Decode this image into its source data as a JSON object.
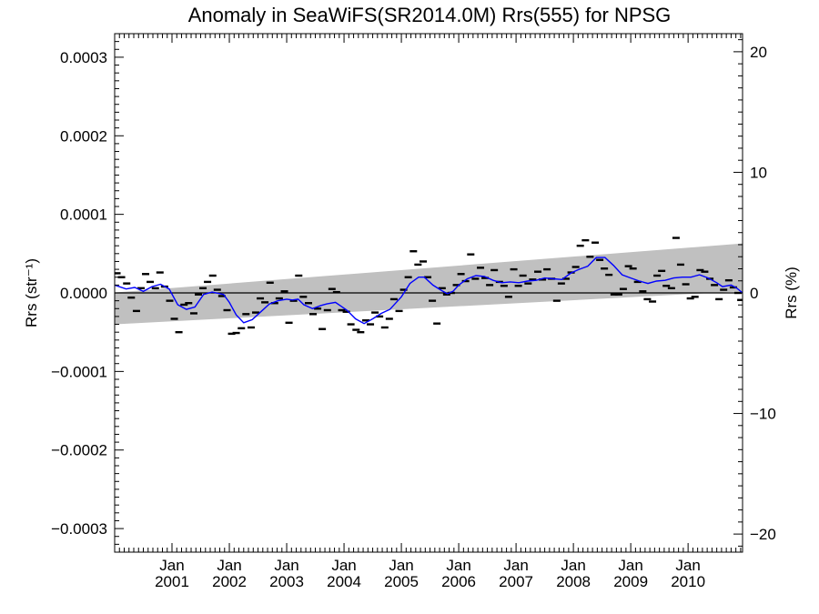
{
  "chart_data": {
    "type": "scatter",
    "title": "Anomaly in SeaWiFS(SR2014.0M) Rrs(555) for NPSG",
    "ylabel_left": "Rrs (str⁻¹)",
    "ylabel_right": "Rrs (%)",
    "xlabel": "",
    "xlim": [
      2000.0,
      2010.95
    ],
    "ylim": [
      -0.00033,
      0.00033
    ],
    "ylim_right": [
      -21.5,
      21.5
    ],
    "grid": false,
    "legend": "none",
    "x_ticks": [
      {
        "month": "Jan",
        "year": "2001",
        "value": 2001.0
      },
      {
        "month": "Jan",
        "year": "2002",
        "value": 2002.0
      },
      {
        "month": "Jan",
        "year": "2003",
        "value": 2003.0
      },
      {
        "month": "Jan",
        "year": "2004",
        "value": 2004.0
      },
      {
        "month": "Jan",
        "year": "2005",
        "value": 2005.0
      },
      {
        "month": "Jan",
        "year": "2006",
        "value": 2006.0
      },
      {
        "month": "Jan",
        "year": "2007",
        "value": 2007.0
      },
      {
        "month": "Jan",
        "year": "2008",
        "value": 2008.0
      },
      {
        "month": "Jan",
        "year": "2009",
        "value": 2009.0
      },
      {
        "month": "Jan",
        "year": "2010",
        "value": 2010.0
      }
    ],
    "y_ticks_left": [
      {
        "label": "0.0003",
        "value": 0.0003
      },
      {
        "label": "0.0002",
        "value": 0.0002
      },
      {
        "label": "0.0001",
        "value": 0.0001
      },
      {
        "label": "0.0000",
        "value": 0.0
      },
      {
        "label": "−0.0001",
        "value": -0.0001
      },
      {
        "label": "−0.0002",
        "value": -0.0002
      },
      {
        "label": "−0.0003",
        "value": -0.0003
      }
    ],
    "y_ticks_right": [
      {
        "label": "20",
        "value": 20
      },
      {
        "label": "10",
        "value": 10
      },
      {
        "label": "0",
        "value": 0
      },
      {
        "label": "−10",
        "value": -10
      },
      {
        "label": "−20",
        "value": -20
      }
    ],
    "zero_line": 0.0,
    "trend_band": {
      "x": [
        2000.0,
        2010.95
      ],
      "upper": [
        5e-07,
        6.3e-05
      ],
      "lower": [
        -4e-05,
        2e-06
      ]
    },
    "scatter_points": [
      [
        2000.04,
        2.5e-05
      ],
      [
        2000.12,
        2e-05
      ],
      [
        2000.21,
        1.2e-05
      ],
      [
        2000.29,
        -6e-06
      ],
      [
        2000.38,
        -2.3e-05
      ],
      [
        2000.46,
        6e-06
      ],
      [
        2000.54,
        2.4e-05
      ],
      [
        2000.62,
        1.4e-05
      ],
      [
        2000.71,
        6e-06
      ],
      [
        2000.79,
        2.6e-05
      ],
      [
        2000.87,
        8e-06
      ],
      [
        2000.96,
        -1e-05
      ],
      [
        2001.04,
        -3.3e-05
      ],
      [
        2001.12,
        -5e-05
      ],
      [
        2001.21,
        -1.5e-05
      ],
      [
        2001.29,
        -1.3e-05
      ],
      [
        2001.38,
        -2.6e-05
      ],
      [
        2001.46,
        -2e-06
      ],
      [
        2001.54,
        6e-06
      ],
      [
        2001.62,
        1.4e-05
      ],
      [
        2001.71,
        2.2e-05
      ],
      [
        2001.79,
        4e-06
      ],
      [
        2001.87,
        -4e-06
      ],
      [
        2001.96,
        -2.2e-05
      ],
      [
        2002.04,
        -5.2e-05
      ],
      [
        2002.12,
        -5.1e-05
      ],
      [
        2002.21,
        -4.5e-05
      ],
      [
        2002.29,
        -2.7e-05
      ],
      [
        2002.38,
        -4.4e-05
      ],
      [
        2002.46,
        -2.5e-05
      ],
      [
        2002.54,
        -7e-06
      ],
      [
        2002.62,
        -1.2e-05
      ],
      [
        2002.71,
        1.3e-05
      ],
      [
        2002.79,
        -1.3e-05
      ],
      [
        2002.87,
        -7e-06
      ],
      [
        2002.96,
        2e-06
      ],
      [
        2003.04,
        -3.8e-05
      ],
      [
        2003.12,
        -1e-05
      ],
      [
        2003.21,
        2.2e-05
      ],
      [
        2003.29,
        -5e-06
      ],
      [
        2003.38,
        -1.3e-05
      ],
      [
        2003.46,
        -2.7e-05
      ],
      [
        2003.54,
        -2e-05
      ],
      [
        2003.62,
        -4.6e-05
      ],
      [
        2003.71,
        -2.2e-05
      ],
      [
        2003.79,
        5e-06
      ],
      [
        2003.87,
        1e-06
      ],
      [
        2003.96,
        -2.2e-05
      ],
      [
        2004.04,
        -2.4e-05
      ],
      [
        2004.12,
        -4e-05
      ],
      [
        2004.21,
        -4.7e-05
      ],
      [
        2004.29,
        -5e-05
      ],
      [
        2004.38,
        -3.5e-05
      ],
      [
        2004.46,
        -4e-05
      ],
      [
        2004.54,
        -2.5e-05
      ],
      [
        2004.62,
        -3e-05
      ],
      [
        2004.71,
        -4.4e-05
      ],
      [
        2004.79,
        -3.3e-05
      ],
      [
        2004.87,
        -8e-06
      ],
      [
        2004.96,
        -2.3e-05
      ],
      [
        2005.04,
        4e-06
      ],
      [
        2005.12,
        2e-05
      ],
      [
        2005.21,
        5.3e-05
      ],
      [
        2005.29,
        3.6e-05
      ],
      [
        2005.38,
        4e-05
      ],
      [
        2005.46,
        2e-05
      ],
      [
        2005.54,
        -1e-05
      ],
      [
        2005.62,
        -3.9e-05
      ],
      [
        2005.71,
        6e-06
      ],
      [
        2005.79,
        -2e-06
      ],
      [
        2005.87,
        0.0
      ],
      [
        2005.96,
        1e-05
      ],
      [
        2006.04,
        2.4e-05
      ],
      [
        2006.12,
        1.5e-05
      ],
      [
        2006.21,
        4.9e-05
      ],
      [
        2006.29,
        1.8e-05
      ],
      [
        2006.38,
        3.2e-05
      ],
      [
        2006.46,
        1.9e-05
      ],
      [
        2006.54,
        1e-05
      ],
      [
        2006.62,
        2.9e-05
      ],
      [
        2006.71,
        1.4e-05
      ],
      [
        2006.79,
        9e-06
      ],
      [
        2006.87,
        -5e-06
      ],
      [
        2006.96,
        3e-05
      ],
      [
        2007.04,
        9e-06
      ],
      [
        2007.12,
        2.2e-05
      ],
      [
        2007.21,
        1.2e-05
      ],
      [
        2007.29,
        1.7e-05
      ],
      [
        2007.38,
        2.7e-05
      ],
      [
        2007.46,
        1.7e-05
      ],
      [
        2007.54,
        3e-05
      ],
      [
        2007.62,
        1.8e-05
      ],
      [
        2007.71,
        -1e-05
      ],
      [
        2007.79,
        1.2e-05
      ],
      [
        2007.87,
        1.8e-05
      ],
      [
        2007.96,
        2.6e-05
      ],
      [
        2008.04,
        3.3e-05
      ],
      [
        2008.12,
        6e-05
      ],
      [
        2008.21,
        6.7e-05
      ],
      [
        2008.29,
        4.6e-05
      ],
      [
        2008.38,
        6.4e-05
      ],
      [
        2008.46,
        4.2e-05
      ],
      [
        2008.54,
        3.1e-05
      ],
      [
        2008.62,
        2.3e-05
      ],
      [
        2008.71,
        -2e-06
      ],
      [
        2008.79,
        -2e-06
      ],
      [
        2008.87,
        5e-06
      ],
      [
        2008.96,
        3.4e-05
      ],
      [
        2009.04,
        3.1e-05
      ],
      [
        2009.12,
        1.4e-05
      ],
      [
        2009.21,
        2e-06
      ],
      [
        2009.29,
        -8e-06
      ],
      [
        2009.38,
        -1.1e-05
      ],
      [
        2009.46,
        2.2e-05
      ],
      [
        2009.54,
        2.8e-05
      ],
      [
        2009.62,
        9e-06
      ],
      [
        2009.71,
        6e-06
      ],
      [
        2009.79,
        7e-05
      ],
      [
        2009.87,
        3.6e-05
      ],
      [
        2009.96,
        1.1e-05
      ],
      [
        2010.04,
        -7e-06
      ],
      [
        2010.12,
        -5e-06
      ],
      [
        2010.21,
        2.9e-05
      ],
      [
        2010.29,
        2.7e-05
      ],
      [
        2010.38,
        1.8e-05
      ],
      [
        2010.46,
        1e-05
      ],
      [
        2010.54,
        -8e-06
      ],
      [
        2010.62,
        4e-06
      ],
      [
        2010.71,
        1.6e-05
      ],
      [
        2010.79,
        7e-06
      ],
      [
        2010.87,
        0.0
      ],
      [
        2010.92,
        -9e-06
      ]
    ],
    "smoothed_line": [
      [
        2000.0,
        1e-05
      ],
      [
        2000.2,
        5e-06
      ],
      [
        2000.35,
        7e-06
      ],
      [
        2000.5,
        2e-06
      ],
      [
        2000.65,
        8e-06
      ],
      [
        2000.8,
        1.1e-05
      ],
      [
        2000.95,
        5e-06
      ],
      [
        2001.1,
        -1.5e-05
      ],
      [
        2001.25,
        -2.1e-05
      ],
      [
        2001.4,
        -1.8e-05
      ],
      [
        2001.55,
        -2e-06
      ],
      [
        2001.7,
        1e-06
      ],
      [
        2001.9,
        -2e-06
      ],
      [
        2002.0,
        -1.2e-05
      ],
      [
        2002.12,
        -2.8e-05
      ],
      [
        2002.25,
        -3.8e-05
      ],
      [
        2002.4,
        -3.4e-05
      ],
      [
        2002.55,
        -2.4e-05
      ],
      [
        2002.7,
        -1.4e-05
      ],
      [
        2002.85,
        -1e-05
      ],
      [
        2003.0,
        -8e-06
      ],
      [
        2003.1,
        -9e-06
      ],
      [
        2003.2,
        -8e-06
      ],
      [
        2003.3,
        -1.5e-05
      ],
      [
        2003.45,
        -2e-05
      ],
      [
        2003.6,
        -1.6e-05
      ],
      [
        2003.7,
        -1.4e-05
      ],
      [
        2003.85,
        -1.2e-05
      ],
      [
        2003.95,
        -1.7e-05
      ],
      [
        2004.05,
        -2.2e-05
      ],
      [
        2004.2,
        -3.3e-05
      ],
      [
        2004.35,
        -3.9e-05
      ],
      [
        2004.5,
        -3.3e-05
      ],
      [
        2004.65,
        -2.6e-05
      ],
      [
        2004.8,
        -2.1e-05
      ],
      [
        2004.9,
        -1.3e-05
      ],
      [
        2005.0,
        -5e-06
      ],
      [
        2005.15,
        1.2e-05
      ],
      [
        2005.3,
        2e-05
      ],
      [
        2005.4,
        2e-05
      ],
      [
        2005.55,
        1e-05
      ],
      [
        2005.7,
        3e-06
      ],
      [
        2005.8,
        -1e-06
      ],
      [
        2005.9,
        2e-06
      ],
      [
        2006.0,
        1e-05
      ],
      [
        2006.15,
        1.8e-05
      ],
      [
        2006.3,
        2.2e-05
      ],
      [
        2006.45,
        2.1e-05
      ],
      [
        2006.6,
        1.6e-05
      ],
      [
        2006.75,
        1.3e-05
      ],
      [
        2006.9,
        1.4e-05
      ],
      [
        2007.05,
        1.3e-05
      ],
      [
        2007.2,
        1.5e-05
      ],
      [
        2007.35,
        1.6e-05
      ],
      [
        2007.5,
        1.9e-05
      ],
      [
        2007.65,
        1.8e-05
      ],
      [
        2007.8,
        1.7e-05
      ],
      [
        2007.95,
        2.5e-05
      ],
      [
        2008.1,
        3e-05
      ],
      [
        2008.25,
        3.4e-05
      ],
      [
        2008.4,
        4.5e-05
      ],
      [
        2008.55,
        4.5e-05
      ],
      [
        2008.7,
        3.5e-05
      ],
      [
        2008.85,
        2.3e-05
      ],
      [
        2009.0,
        1.9e-05
      ],
      [
        2009.15,
        1.5e-05
      ],
      [
        2009.3,
        1.2e-05
      ],
      [
        2009.45,
        1.5e-05
      ],
      [
        2009.6,
        1.6e-05
      ],
      [
        2009.75,
        1.9e-05
      ],
      [
        2009.9,
        2e-05
      ],
      [
        2010.05,
        2e-05
      ],
      [
        2010.2,
        2.3e-05
      ],
      [
        2010.35,
        1.9e-05
      ],
      [
        2010.5,
        1.3e-05
      ],
      [
        2010.6,
        8e-06
      ],
      [
        2010.75,
        1e-05
      ],
      [
        2010.85,
        6e-06
      ],
      [
        2010.95,
        0.0
      ]
    ],
    "colors": {
      "band": "#c0c0c0",
      "smoothed_line": "#0000ff",
      "points": "#000000",
      "zero_line": "#000000",
      "axes": "#000000"
    }
  }
}
